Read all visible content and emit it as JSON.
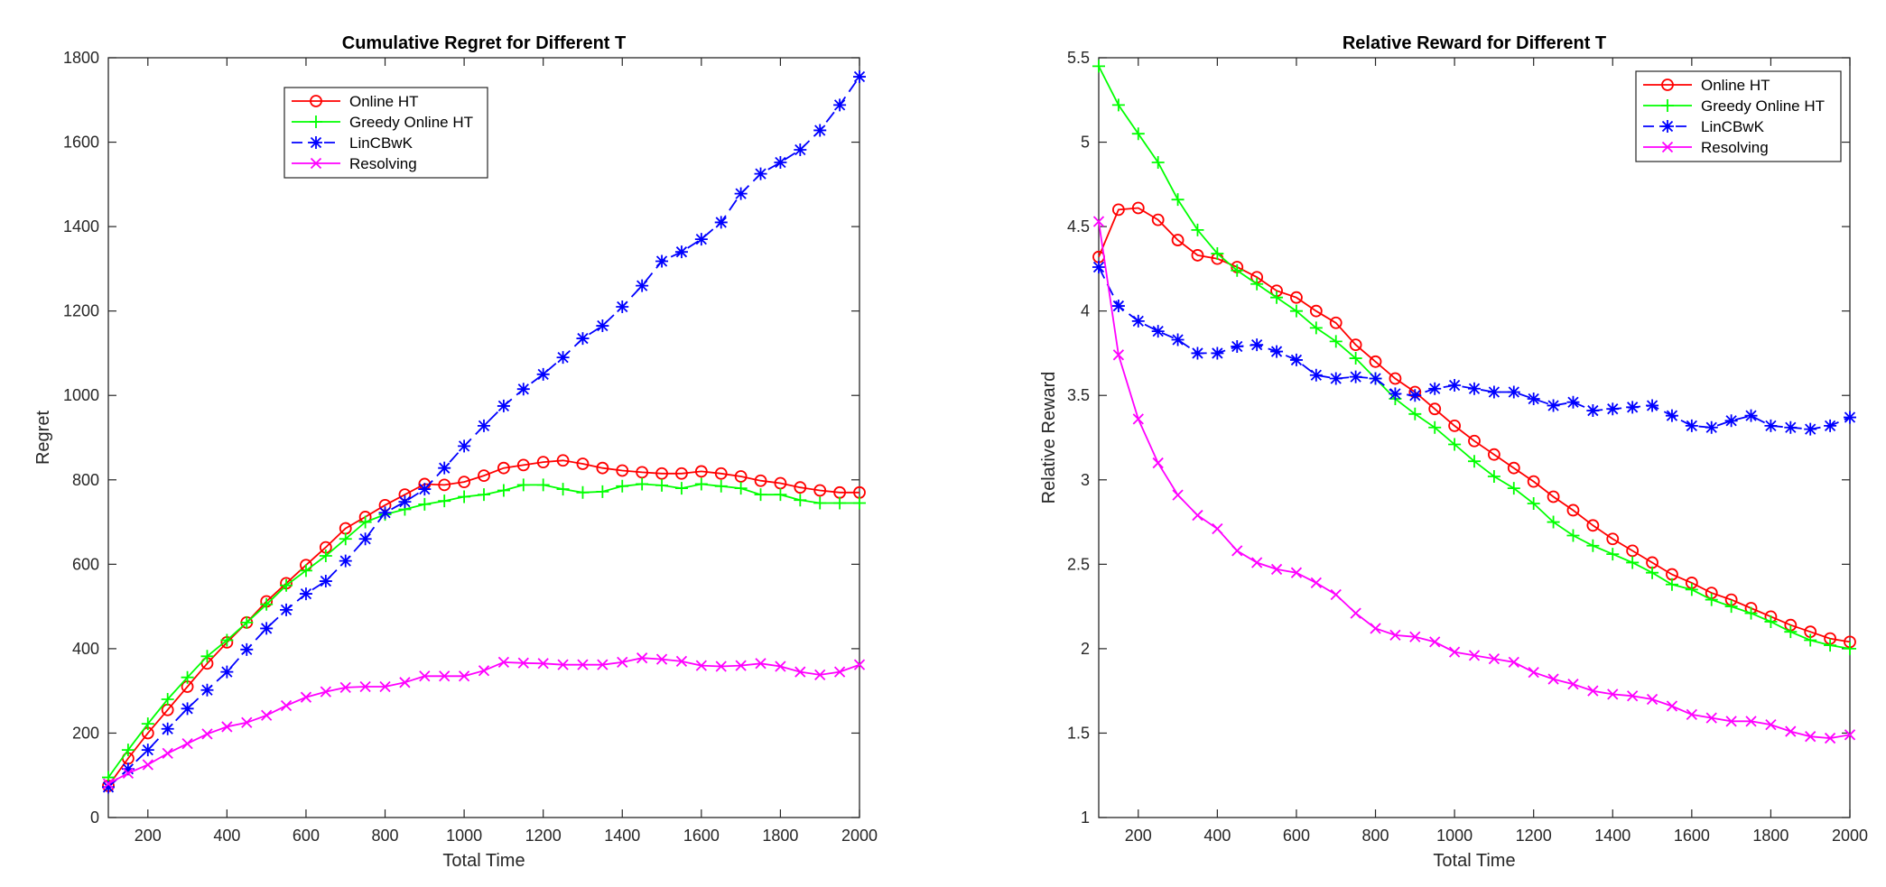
{
  "chart_data": [
    {
      "type": "line",
      "title": "Cumulative Regret for Different T",
      "xlabel": "Total Time",
      "ylabel": "Regret",
      "xlim": [
        100,
        2000
      ],
      "ylim": [
        0,
        1800
      ],
      "xticks": [
        "200",
        "400",
        "600",
        "800",
        "1000",
        "1200",
        "1400",
        "1600",
        "1800",
        "2000"
      ],
      "yticks": [
        "0",
        "200",
        "400",
        "600",
        "800",
        "1000",
        "1200",
        "1400",
        "1600",
        "1800"
      ],
      "legend_position": "top-center",
      "x": [
        100,
        150,
        200,
        250,
        300,
        350,
        400,
        450,
        500,
        550,
        600,
        650,
        700,
        750,
        800,
        850,
        900,
        950,
        1000,
        1050,
        1100,
        1150,
        1200,
        1250,
        1300,
        1350,
        1400,
        1450,
        1500,
        1550,
        1600,
        1650,
        1700,
        1750,
        1800,
        1850,
        1900,
        1950,
        2000
      ],
      "series": [
        {
          "name": "Online HT",
          "color": "#ff0000",
          "marker": "circle",
          "dashed": false,
          "values": [
            75,
            140,
            200,
            255,
            310,
            365,
            415,
            462,
            512,
            555,
            598,
            640,
            685,
            712,
            740,
            765,
            790,
            788,
            795,
            810,
            828,
            835,
            842,
            846,
            838,
            828,
            822,
            818,
            815,
            815,
            820,
            815,
            808,
            798,
            792,
            782,
            775,
            770,
            770
          ]
        },
        {
          "name": "Greedy Online HT",
          "color": "#00ff00",
          "marker": "plus",
          "dashed": false,
          "values": [
            95,
            160,
            222,
            280,
            332,
            382,
            420,
            462,
            505,
            550,
            585,
            620,
            660,
            700,
            718,
            730,
            742,
            750,
            760,
            765,
            775,
            788,
            788,
            778,
            770,
            772,
            785,
            790,
            787,
            780,
            790,
            785,
            780,
            765,
            765,
            752,
            745,
            745,
            745
          ]
        },
        {
          "name": "LinCBwK",
          "color": "#0000ff",
          "marker": "star",
          "dashed": true,
          "values": [
            72,
            115,
            160,
            210,
            258,
            302,
            345,
            398,
            448,
            492,
            530,
            560,
            608,
            660,
            722,
            748,
            778,
            828,
            880,
            928,
            975,
            1015,
            1050,
            1090,
            1135,
            1165,
            1210,
            1260,
            1318,
            1340,
            1370,
            1410,
            1478,
            1525,
            1552,
            1582,
            1628,
            1688,
            1755
          ]
        },
        {
          "name": "Resolving",
          "color": "#ff00ff",
          "marker": "x",
          "dashed": false,
          "values": [
            80,
            105,
            125,
            152,
            175,
            198,
            215,
            225,
            242,
            265,
            285,
            298,
            308,
            310,
            310,
            320,
            335,
            335,
            335,
            348,
            368,
            366,
            365,
            362,
            362,
            362,
            368,
            378,
            375,
            370,
            360,
            358,
            360,
            365,
            358,
            345,
            338,
            345,
            362
          ]
        }
      ]
    },
    {
      "type": "line",
      "title": "Relative Reward for Different T",
      "xlabel": "Total Time",
      "ylabel": "Relative Reward",
      "xlim": [
        100,
        2000
      ],
      "ylim": [
        1,
        5.5
      ],
      "xticks": [
        "200",
        "400",
        "600",
        "800",
        "1000",
        "1200",
        "1400",
        "1600",
        "1800",
        "2000"
      ],
      "yticks": [
        "1",
        "1.5",
        "2",
        "2.5",
        "3",
        "3.5",
        "4",
        "4.5",
        "5",
        "5.5"
      ],
      "legend_position": "top-right",
      "x": [
        100,
        150,
        200,
        250,
        300,
        350,
        400,
        450,
        500,
        550,
        600,
        650,
        700,
        750,
        800,
        850,
        900,
        950,
        1000,
        1050,
        1100,
        1150,
        1200,
        1250,
        1300,
        1350,
        1400,
        1450,
        1500,
        1550,
        1600,
        1650,
        1700,
        1750,
        1800,
        1850,
        1900,
        1950,
        2000
      ],
      "series": [
        {
          "name": "Online HT",
          "color": "#ff0000",
          "marker": "circle",
          "dashed": false,
          "values": [
            4.32,
            4.6,
            4.61,
            4.54,
            4.42,
            4.33,
            4.31,
            4.26,
            4.2,
            4.12,
            4.08,
            4.0,
            3.93,
            3.8,
            3.7,
            3.6,
            3.52,
            3.42,
            3.32,
            3.23,
            3.15,
            3.07,
            2.99,
            2.9,
            2.82,
            2.73,
            2.65,
            2.58,
            2.51,
            2.44,
            2.39,
            2.33,
            2.29,
            2.24,
            2.19,
            2.14,
            2.1,
            2.06,
            2.04
          ]
        },
        {
          "name": "Greedy Online HT",
          "color": "#00ff00",
          "marker": "plus",
          "dashed": false,
          "values": [
            5.45,
            5.22,
            5.05,
            4.88,
            4.66,
            4.48,
            4.34,
            4.24,
            4.16,
            4.08,
            4.0,
            3.9,
            3.82,
            3.72,
            3.6,
            3.48,
            3.39,
            3.31,
            3.21,
            3.11,
            3.02,
            2.95,
            2.86,
            2.75,
            2.67,
            2.61,
            2.56,
            2.51,
            2.45,
            2.38,
            2.35,
            2.29,
            2.25,
            2.21,
            2.16,
            2.1,
            2.05,
            2.02,
            2.0
          ]
        },
        {
          "name": "LinCBwK",
          "color": "#0000ff",
          "marker": "star",
          "dashed": true,
          "values": [
            4.26,
            4.03,
            3.94,
            3.88,
            3.83,
            3.75,
            3.75,
            3.79,
            3.8,
            3.76,
            3.71,
            3.62,
            3.6,
            3.61,
            3.6,
            3.51,
            3.5,
            3.54,
            3.56,
            3.54,
            3.52,
            3.52,
            3.48,
            3.44,
            3.46,
            3.41,
            3.42,
            3.43,
            3.44,
            3.38,
            3.32,
            3.31,
            3.35,
            3.38,
            3.32,
            3.31,
            3.3,
            3.32,
            3.37
          ]
        },
        {
          "name": "Resolving",
          "color": "#ff00ff",
          "marker": "x",
          "dashed": false,
          "values": [
            4.53,
            3.74,
            3.36,
            3.1,
            2.91,
            2.79,
            2.71,
            2.58,
            2.51,
            2.47,
            2.45,
            2.39,
            2.32,
            2.21,
            2.12,
            2.08,
            2.07,
            2.04,
            1.98,
            1.96,
            1.94,
            1.92,
            1.86,
            1.82,
            1.79,
            1.75,
            1.73,
            1.72,
            1.7,
            1.66,
            1.61,
            1.59,
            1.57,
            1.57,
            1.55,
            1.51,
            1.48,
            1.47,
            1.49
          ]
        }
      ]
    }
  ]
}
